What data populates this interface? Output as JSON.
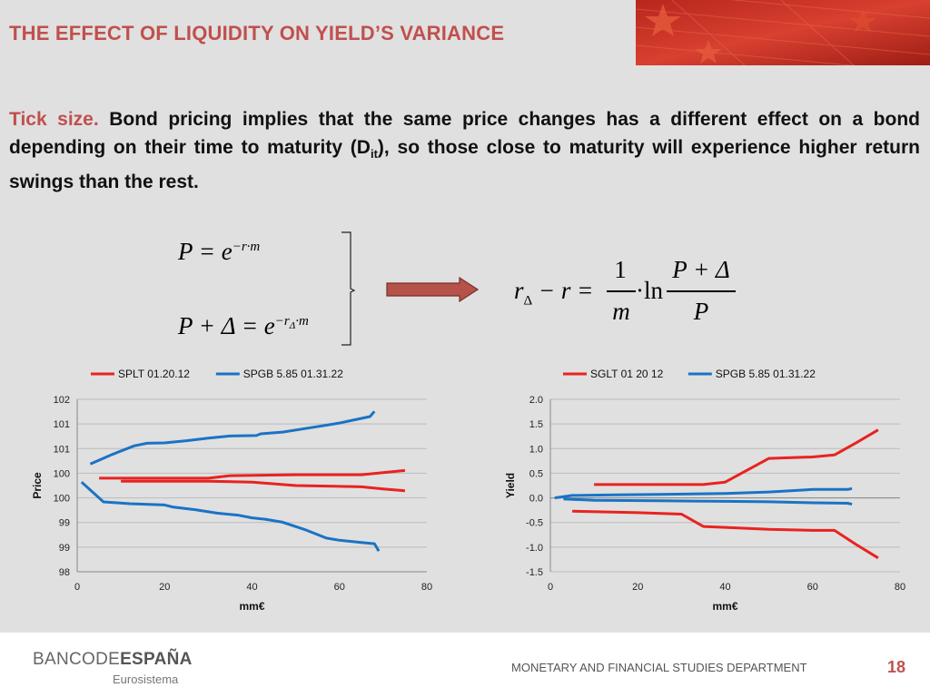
{
  "slide": {
    "title": "THE EFFECT OF LIQUIDITY ON YIELD’S VARIANCE",
    "intro_lead": "Tick size.",
    "intro_text_1": " Bond pricing implies that the same price changes has a different effect on a bond depending on their time to maturity (D",
    "intro_sub": "it",
    "intro_text_2": "), so those close to maturity will experience higher return swings than the rest."
  },
  "formulas": {
    "eq1_lhs": "P = e",
    "eq1_exp": "−r·m",
    "eq2_lhs": "P + Δ = e",
    "eq2_exp": "−r",
    "eq2_exp_sub": "Δ",
    "eq2_exp_tail": "·m",
    "result_lhs": "r",
    "result_lhs_sub": "Δ",
    "result_mid": " − r =",
    "frac1_num": "1",
    "frac1_den": "m",
    "ln": "·ln",
    "frac2_num": "P + Δ",
    "frac2_den": "P"
  },
  "colors": {
    "accent": "#c0504d",
    "red_series": "#e8231f",
    "blue_series": "#1a73c5"
  },
  "chart_data": [
    {
      "type": "line",
      "xlabel": "mm€",
      "ylabel": "Price",
      "xlim": [
        0,
        80
      ],
      "ylim": [
        98,
        102
      ],
      "x_ticks": [
        "0",
        "20",
        "40",
        "60",
        "80"
      ],
      "y_ticks": [
        "98",
        "99",
        "99",
        "100",
        "100",
        "101",
        "101",
        "102"
      ],
      "legend_position": "top",
      "series": [
        {
          "name": "SPLT 01.20.12",
          "color": "#e8231f",
          "lines": [
            [
              [
                5,
                100.17
              ],
              [
                20,
                100.17
              ],
              [
                30,
                100.17
              ],
              [
                35,
                100.23
              ],
              [
                50,
                100.25
              ],
              [
                60,
                100.25
              ],
              [
                65,
                100.25
              ],
              [
                70,
                100.3
              ],
              [
                75,
                100.35
              ]
            ],
            [
              [
                10,
                100.1
              ],
              [
                30,
                100.1
              ],
              [
                40,
                100.08
              ],
              [
                50,
                100.0
              ],
              [
                60,
                99.98
              ],
              [
                65,
                99.97
              ],
              [
                70,
                99.92
              ],
              [
                75,
                99.88
              ]
            ]
          ]
        },
        {
          "name": "SPGB 5.85 01.31.22",
          "color": "#1a73c5",
          "lines": [
            [
              [
                3,
                100.5
              ],
              [
                8,
                100.72
              ],
              [
                13,
                100.92
              ],
              [
                16,
                100.98
              ],
              [
                20,
                100.99
              ],
              [
                25,
                101.04
              ],
              [
                30,
                101.1
              ],
              [
                35,
                101.15
              ],
              [
                41,
                101.16
              ],
              [
                42,
                101.2
              ],
              [
                47,
                101.24
              ],
              [
                52,
                101.32
              ],
              [
                57,
                101.4
              ],
              [
                60,
                101.45
              ],
              [
                67,
                101.6
              ],
              [
                68,
                101.72
              ]
            ],
            [
              [
                1,
                100.08
              ],
              [
                6,
                99.62
              ],
              [
                12,
                99.58
              ],
              [
                20,
                99.55
              ],
              [
                22,
                99.5
              ],
              [
                27,
                99.44
              ],
              [
                32,
                99.36
              ],
              [
                37,
                99.31
              ],
              [
                40,
                99.25
              ],
              [
                43,
                99.22
              ],
              [
                47,
                99.15
              ],
              [
                52,
                98.98
              ],
              [
                57,
                98.78
              ],
              [
                60,
                98.73
              ],
              [
                65,
                98.68
              ],
              [
                68,
                98.65
              ],
              [
                69,
                98.48
              ]
            ]
          ]
        }
      ]
    },
    {
      "type": "line",
      "xlabel": "mm€",
      "ylabel": "Yield",
      "xlim": [
        0,
        80
      ],
      "ylim": [
        -1.5,
        2.0
      ],
      "x_ticks": [
        "0",
        "20",
        "40",
        "60",
        "80"
      ],
      "y_ticks": [
        "-1.5",
        "-1.0",
        "-0.5",
        "0.0",
        "0.5",
        "1.0",
        "1.5",
        "2.0"
      ],
      "legend_position": "top",
      "series": [
        {
          "name": "SGLT 01 20 12",
          "color": "#e8231f",
          "lines": [
            [
              [
                10,
                0.27
              ],
              [
                20,
                0.27
              ],
              [
                30,
                0.27
              ],
              [
                35,
                0.27
              ],
              [
                40,
                0.32
              ],
              [
                50,
                0.8
              ],
              [
                60,
                0.83
              ],
              [
                65,
                0.87
              ],
              [
                70,
                1.12
              ],
              [
                75,
                1.38
              ]
            ],
            [
              [
                5,
                -0.27
              ],
              [
                20,
                -0.3
              ],
              [
                30,
                -0.33
              ],
              [
                35,
                -0.58
              ],
              [
                40,
                -0.6
              ],
              [
                50,
                -0.64
              ],
              [
                60,
                -0.66
              ],
              [
                65,
                -0.66
              ],
              [
                70,
                -0.95
              ],
              [
                75,
                -1.22
              ]
            ]
          ]
        },
        {
          "name": "SPGB 5.85 01.31.22",
          "color": "#1a73c5",
          "lines": [
            [
              [
                1,
                0.0
              ],
              [
                5,
                0.05
              ],
              [
                15,
                0.06
              ],
              [
                25,
                0.07
              ],
              [
                40,
                0.09
              ],
              [
                50,
                0.12
              ],
              [
                60,
                0.17
              ],
              [
                68,
                0.17
              ],
              [
                69,
                0.19
              ]
            ],
            [
              [
                3,
                -0.02
              ],
              [
                10,
                -0.05
              ],
              [
                25,
                -0.06
              ],
              [
                40,
                -0.07
              ],
              [
                50,
                -0.08
              ],
              [
                60,
                -0.1
              ],
              [
                68,
                -0.11
              ],
              [
                69,
                -0.13
              ]
            ]
          ]
        }
      ]
    }
  ],
  "footer": {
    "bank_name_1": "BANCO",
    "bank_name_2": "DE",
    "bank_name_3": "ESPAÑA",
    "bank_sub": "Eurosistema",
    "department": "MONETARY AND FINANCIAL STUDIES DEPARTMENT",
    "page_number": "18"
  }
}
